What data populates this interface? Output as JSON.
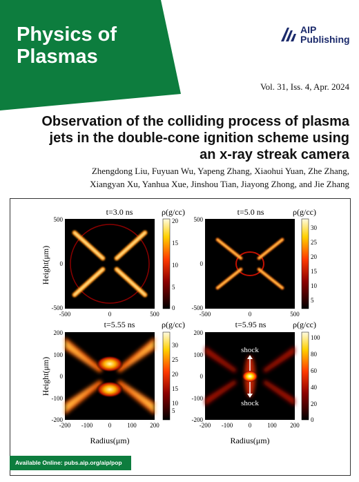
{
  "journal": {
    "title_line1": "Physics of",
    "title_line2": "Plasmas",
    "publisher_line1": "AIP",
    "publisher_line2": "Publishing",
    "issue": "Vol. 31, Iss. 4, Apr. 2024",
    "brand_color": "#0d7d3e"
  },
  "article": {
    "title_line1": "Observation of the colliding process of plasma",
    "title_line2": "jets in the double-cone ignition scheme using",
    "title_line3": "an x-ray streak camera",
    "authors_line1": "Zhengdong Liu, Fuyuan Wu, Yapeng Zhang, Xiaohui Yuan, Zhe Zhang,",
    "authors_line2": "Xiangyan Xu, Yanhua Xue, Jinshou Tian, Jiayong Zhong, and Jie Zhang"
  },
  "figure": {
    "panels": [
      {
        "time": "t=3.0 ns",
        "cb_label": "ρ(g/cc)",
        "cb_ticks": [
          "20",
          "15",
          "10",
          "5",
          "0"
        ],
        "x_ticks": [
          "-500",
          "0",
          "500"
        ],
        "y_ticks": [
          "500",
          "0",
          "-500"
        ]
      },
      {
        "time": "t=5.0 ns",
        "cb_label": "ρ(g/cc)",
        "cb_ticks": [
          "30",
          "25",
          "20",
          "15",
          "10",
          "5"
        ],
        "x_ticks": [
          "-500",
          "0",
          "500"
        ],
        "y_ticks": [
          "500",
          "0",
          "-500"
        ]
      },
      {
        "time": "t=5.55 ns",
        "cb_label": "ρ(g/cc)",
        "cb_ticks": [
          "30",
          "25",
          "20",
          "15",
          "10",
          "5"
        ],
        "x_ticks": [
          "-200",
          "-100",
          "0",
          "100",
          "200"
        ],
        "y_ticks": [
          "200",
          "100",
          "0",
          "-100",
          "-200"
        ]
      },
      {
        "time": "t=5.95 ns",
        "cb_label": "ρ(g/cc)",
        "cb_ticks": [
          "100",
          "80",
          "60",
          "40",
          "20",
          "0"
        ],
        "x_ticks": [
          "-200",
          "-100",
          "0",
          "100",
          "200"
        ],
        "y_ticks": [
          "200",
          "100",
          "0",
          "-100",
          "-200"
        ],
        "annotations": [
          "shock",
          "shock"
        ]
      }
    ],
    "ylabel": "Height(μm)",
    "xlabel": "Radius(μm)"
  },
  "footer": {
    "available_online": "Available Online: pubs.aip.org/aip/pop"
  }
}
